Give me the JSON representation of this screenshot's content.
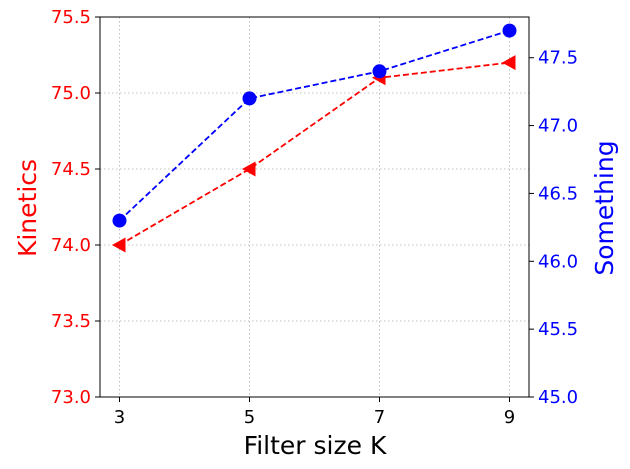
{
  "chart_data": {
    "type": "line",
    "title": "",
    "xlabel": "Filter size K",
    "x": [
      3,
      5,
      7,
      9
    ],
    "xticks": [
      "3",
      "5",
      "7",
      "9"
    ],
    "xlim": [
      2.7,
      9.3
    ],
    "grid": true,
    "left_axis": {
      "label": "Kinetics",
      "color": "#ff0000",
      "ylim": [
        73.0,
        75.5
      ],
      "ticks": [
        73.0,
        73.5,
        74.0,
        74.5,
        75.0,
        75.5
      ],
      "tick_labels": [
        "73.0",
        "73.5",
        "74.0",
        "74.5",
        "75.0",
        "75.5"
      ]
    },
    "right_axis": {
      "label": "Something",
      "color": "#0000ff",
      "ylim": [
        45.0,
        47.8
      ],
      "ticks": [
        45.0,
        45.5,
        46.0,
        46.5,
        47.0,
        47.5
      ],
      "tick_labels": [
        "45.0",
        "45.5",
        "46.0",
        "46.5",
        "47.0",
        "47.5"
      ]
    },
    "series": [
      {
        "axis": "left",
        "color": "#ff0000",
        "marker": "triangle-left",
        "linestyle": "dashed",
        "values": [
          74.0,
          74.5,
          75.1,
          75.2
        ]
      },
      {
        "axis": "right",
        "color": "#0000ff",
        "marker": "circle",
        "linestyle": "dashed",
        "values": [
          46.3,
          47.2,
          47.4,
          47.7
        ]
      }
    ]
  }
}
